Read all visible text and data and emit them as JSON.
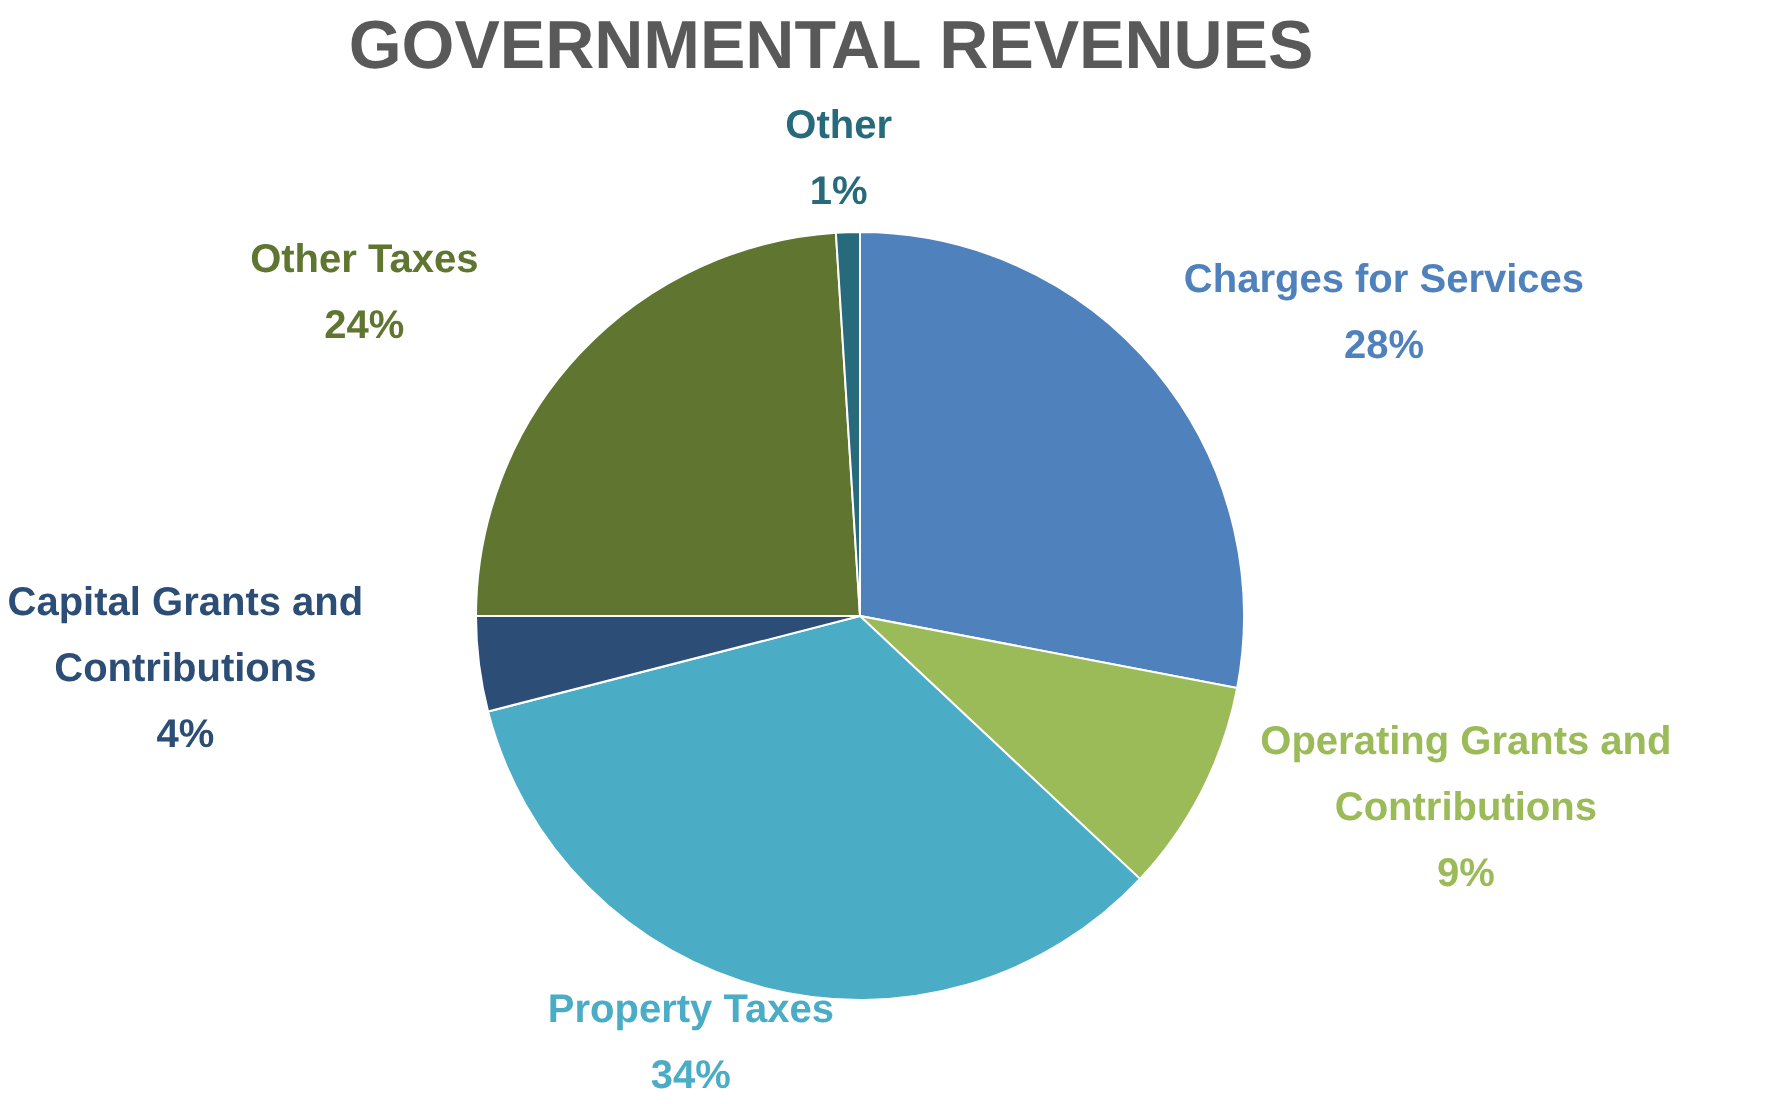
{
  "chart_data": {
    "type": "pie",
    "title": "GOVERNMENTAL REVENUES",
    "categories": [
      "Charges for Services",
      "Operating Grants and Contributions",
      "Property Taxes",
      "Capital Grants and Contributions",
      "Other Taxes",
      "Other"
    ],
    "values": [
      28,
      9,
      34,
      4,
      24,
      1
    ],
    "value_labels": [
      "28%",
      "9%",
      "34%",
      "4%",
      "24%",
      "1%"
    ],
    "colors": [
      "#4f81bd",
      "#9bbb59",
      "#4bacc6",
      "#2c4d75",
      "#5f7530",
      "#276a7c"
    ],
    "legend": false
  }
}
